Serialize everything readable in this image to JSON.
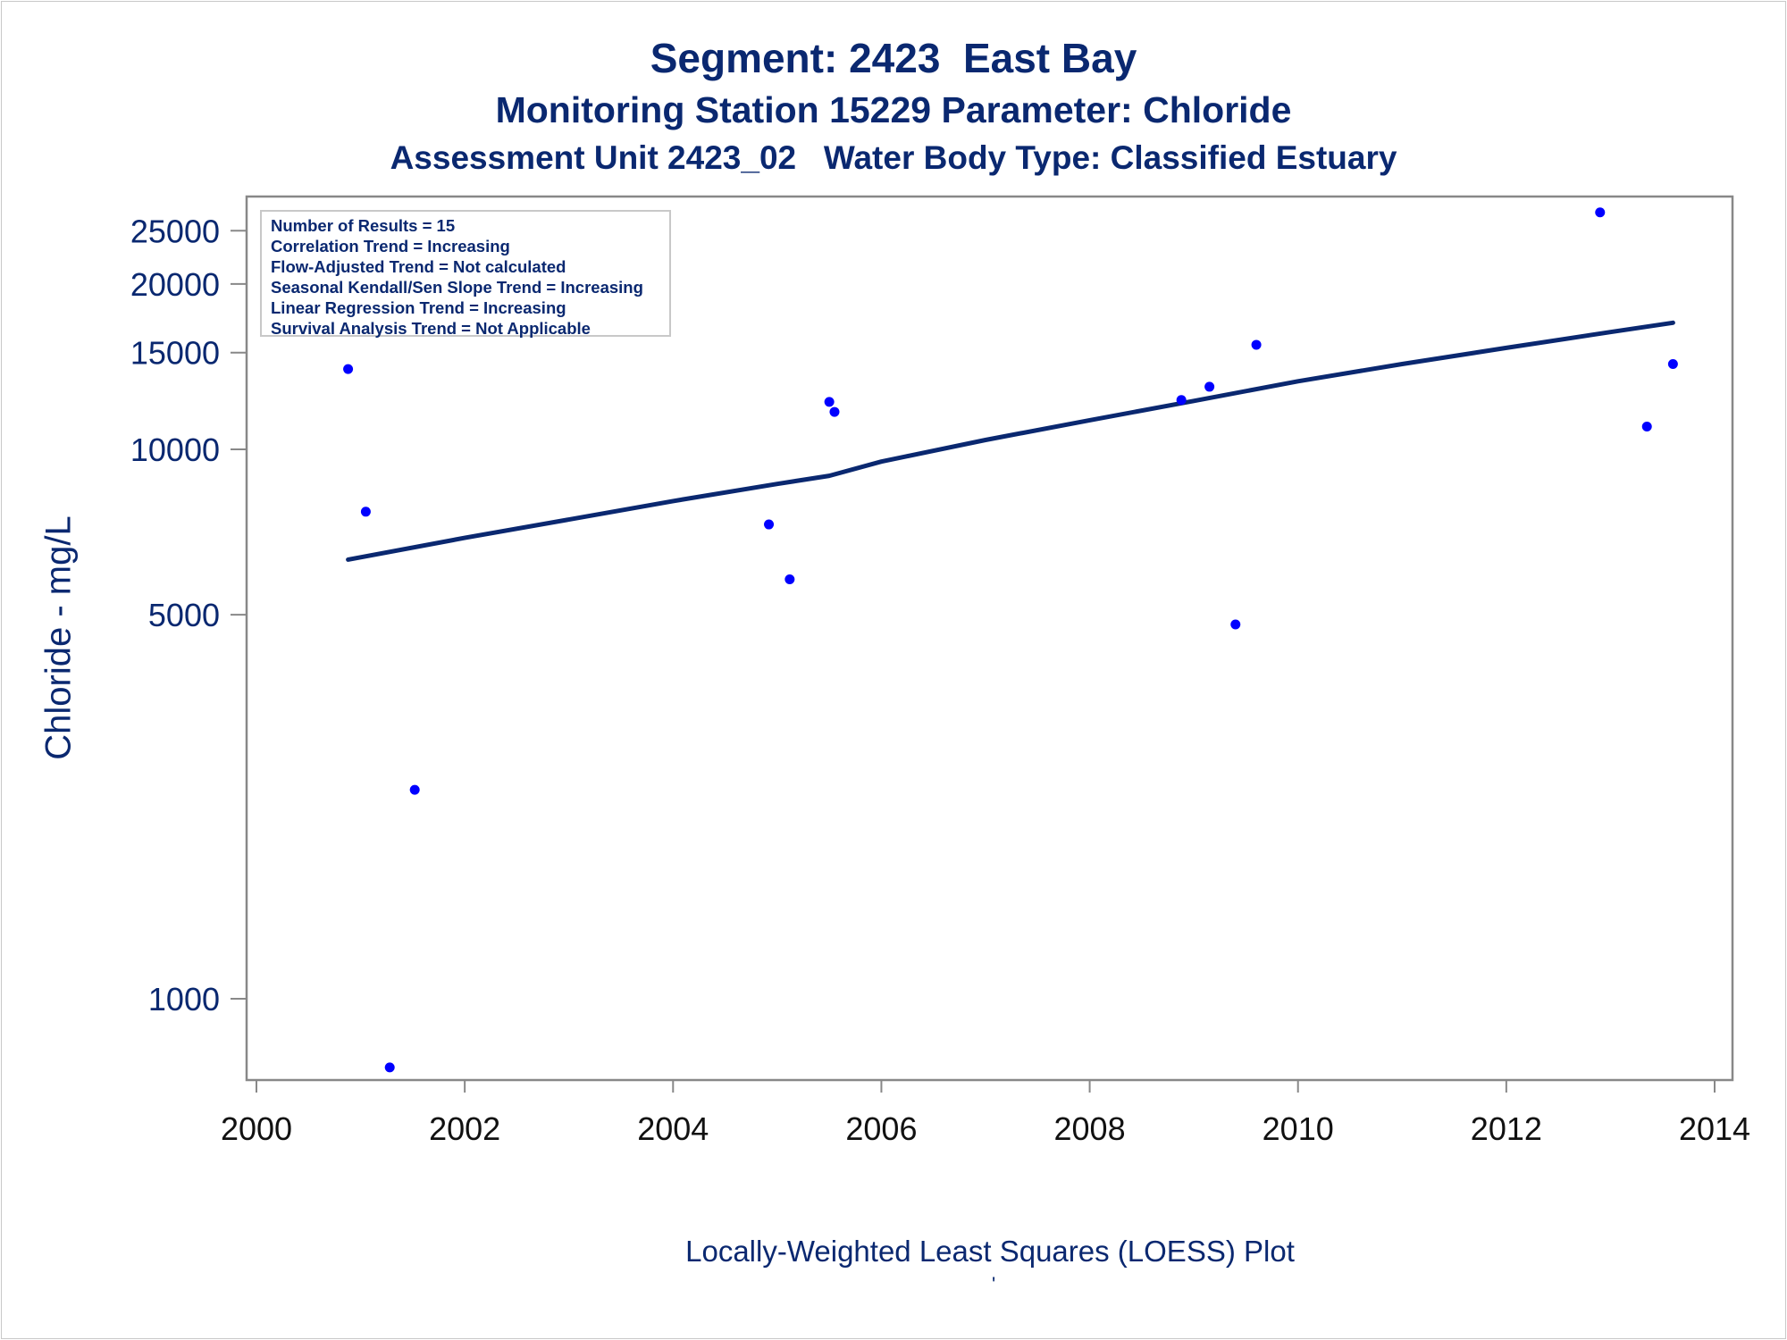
{
  "titles": {
    "line1": "Segment: 2423  East Bay",
    "line2": "Monitoring Station 15229 Parameter: Chloride",
    "line3": "Assessment Unit 2423_02   Water Body Type: Classified Estuary"
  },
  "stats_box": {
    "lines": [
      "Number of Results = 15",
      "Correlation Trend = Increasing",
      "Flow-Adjusted Trend = Not calculated",
      "Seasonal Kendall/Sen Slope Trend = Increasing",
      "Linear Regression Trend = Increasing",
      "Survival Analysis Trend = Not Applicable"
    ]
  },
  "caption": "Locally-Weighted Least Squares (LOESS) Plot",
  "caption_mark": "'",
  "chart_data": {
    "type": "scatter",
    "y_scale": "log",
    "ylabel": "Chloride - mg/L",
    "xlabel": "",
    "xlim": [
      2000,
      2014
    ],
    "ylim": [
      740,
      29000
    ],
    "x_ticks": [
      2000,
      2002,
      2004,
      2006,
      2008,
      2010,
      2012,
      2014
    ],
    "y_ticks": [
      1000,
      5000,
      10000,
      15000,
      20000,
      25000
    ],
    "grid": false,
    "colors": {
      "points": "#0000ff",
      "line": "#0a2870",
      "text": "#0a2870",
      "axis": "#888888"
    },
    "points": [
      {
        "x": 2000.88,
        "y": 14000
      },
      {
        "x": 2001.05,
        "y": 7700
      },
      {
        "x": 2001.28,
        "y": 750
      },
      {
        "x": 2001.52,
        "y": 2400
      },
      {
        "x": 2004.92,
        "y": 7300
      },
      {
        "x": 2005.12,
        "y": 5800
      },
      {
        "x": 2005.5,
        "y": 12200
      },
      {
        "x": 2005.55,
        "y": 11700
      },
      {
        "x": 2008.88,
        "y": 12300
      },
      {
        "x": 2009.15,
        "y": 13000
      },
      {
        "x": 2009.4,
        "y": 4800
      },
      {
        "x": 2009.6,
        "y": 15500
      },
      {
        "x": 2012.9,
        "y": 27000
      },
      {
        "x": 2013.35,
        "y": 11000
      },
      {
        "x": 2013.6,
        "y": 14300
      }
    ],
    "trend_line": {
      "x": [
        2000.88,
        2002,
        2003,
        2004,
        2005,
        2005.5,
        2006,
        2007,
        2008,
        2009,
        2010,
        2011,
        2012,
        2013,
        2013.6
      ],
      "y": [
        6300,
        6900,
        7450,
        8050,
        8650,
        8950,
        9500,
        10400,
        11300,
        12250,
        13300,
        14300,
        15300,
        16350,
        17000
      ]
    }
  }
}
